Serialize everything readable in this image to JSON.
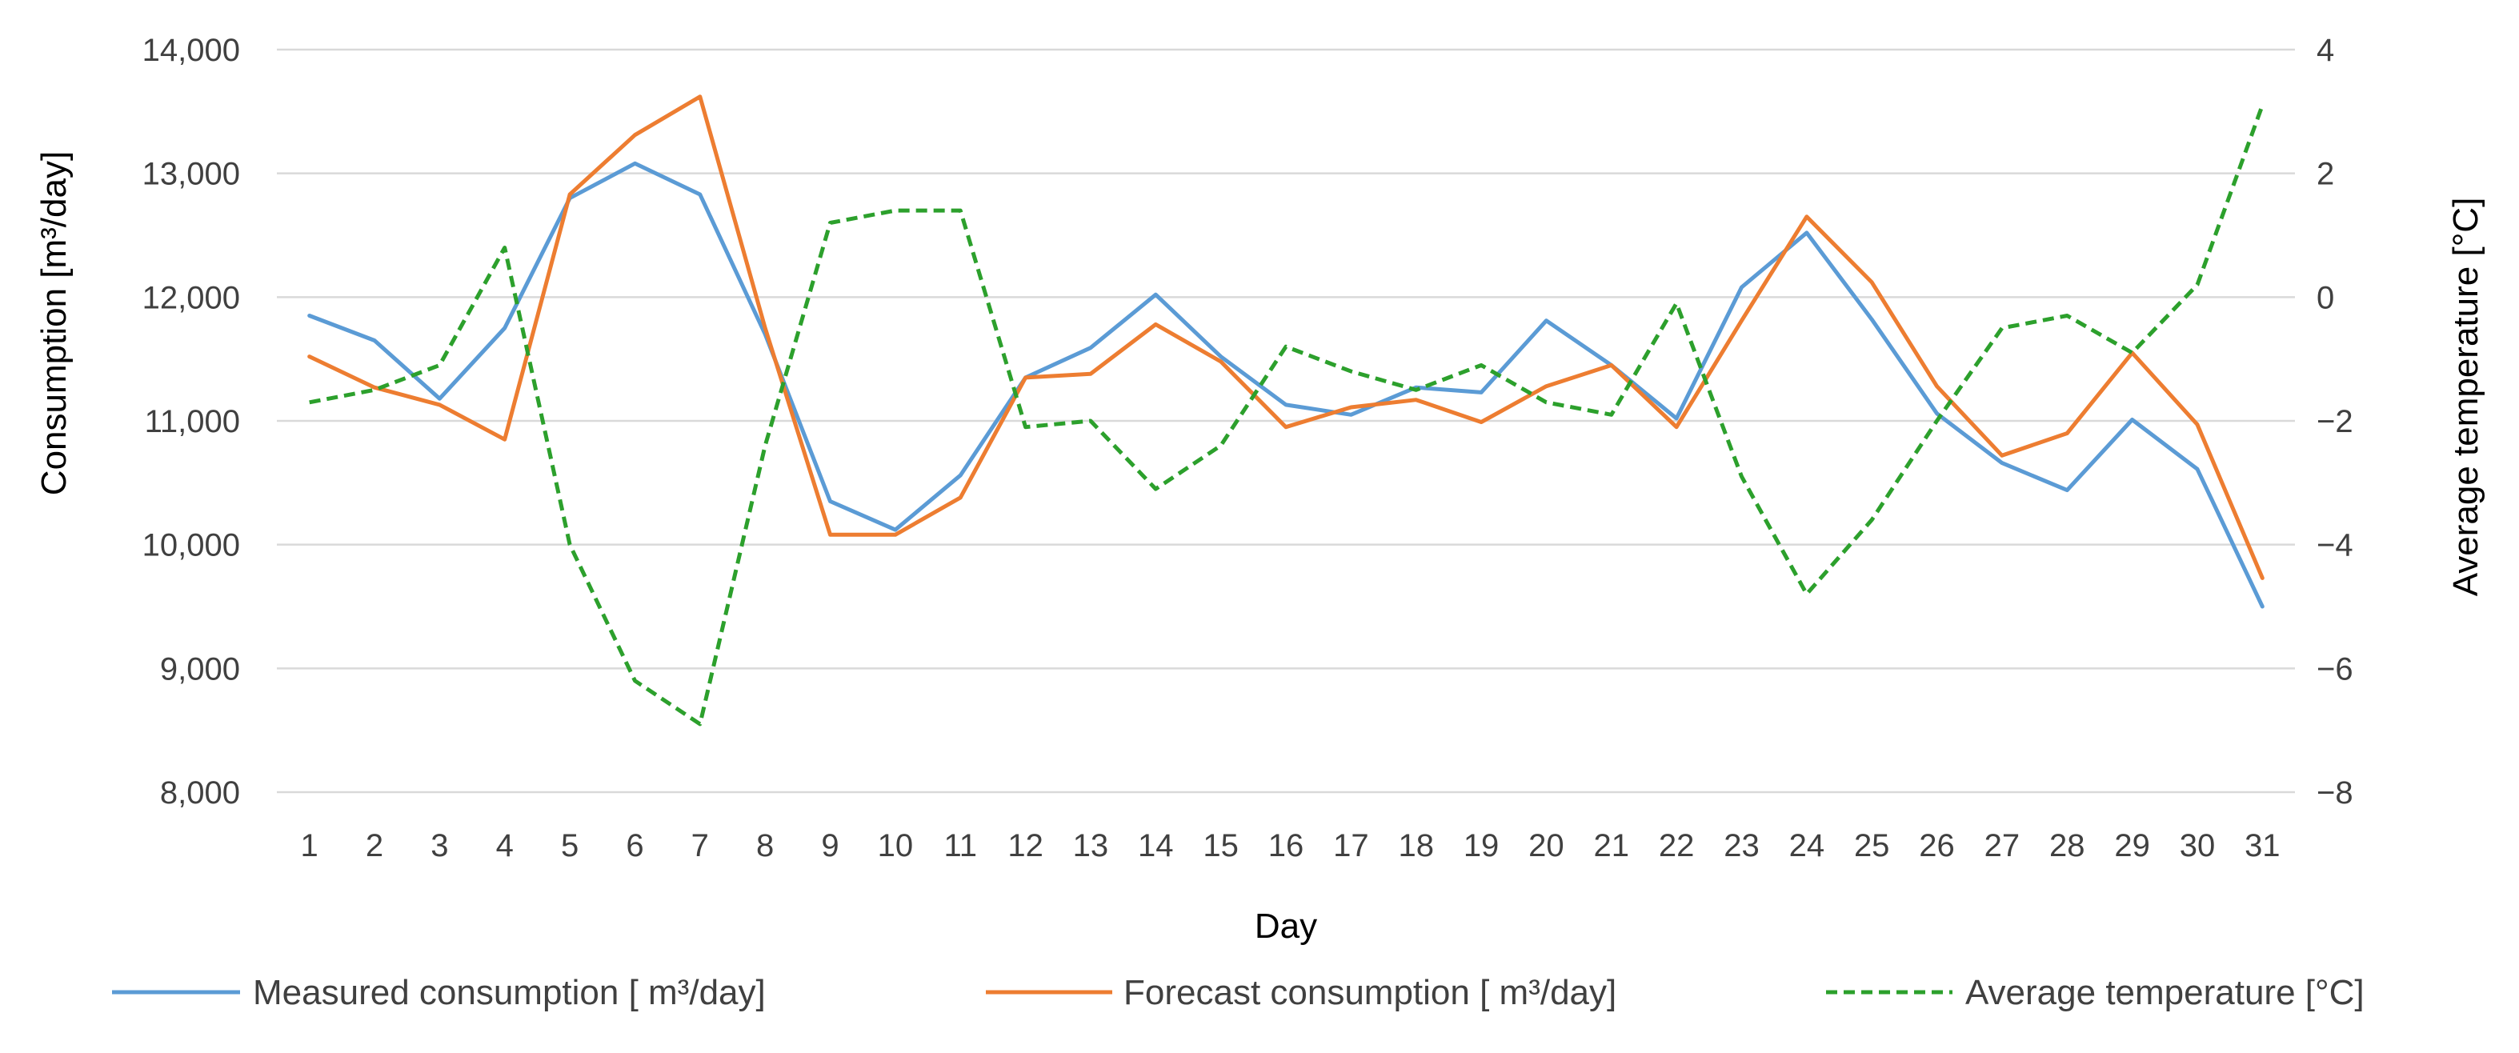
{
  "chart_data": {
    "type": "line",
    "xlabel": "Day",
    "ylabel_left": "Consumption [m³/day]",
    "ylabel_right": "Average temperature [°C]",
    "x": [
      1,
      2,
      3,
      4,
      5,
      6,
      7,
      8,
      9,
      10,
      11,
      12,
      13,
      14,
      15,
      16,
      17,
      18,
      19,
      20,
      21,
      22,
      23,
      24,
      25,
      26,
      27,
      28,
      29,
      30,
      31
    ],
    "y_left": {
      "min": 8000,
      "max": 14000,
      "step": 1000,
      "tick_labels": [
        "8,000",
        "9,000",
        "10,000",
        "11,000",
        "12,000",
        "13,000",
        "14,000"
      ]
    },
    "y_right": {
      "min": -8,
      "max": 4,
      "step": 2,
      "tick_labels": [
        "−8",
        "−6",
        "−4",
        "−2",
        "0",
        "2",
        "4"
      ]
    },
    "grid": true,
    "legend_position": "bottom",
    "series": [
      {
        "name": "Measured consumption [ m³/day]",
        "axis": "left",
        "color": "#5b9bd5",
        "dash": "solid",
        "values": [
          11850,
          11650,
          11180,
          11750,
          12800,
          13080,
          12830,
          11700,
          10350,
          10120,
          10560,
          11350,
          11590,
          12020,
          11520,
          11130,
          11050,
          11270,
          11230,
          11810,
          11450,
          11020,
          12080,
          12520,
          11820,
          11060,
          10660,
          10440,
          11010,
          10610,
          9500
        ]
      },
      {
        "name": "Forecast consumption [ m³/day]",
        "axis": "left",
        "color": "#ed7d31",
        "dash": "solid",
        "values": [
          11520,
          11270,
          11130,
          10850,
          12830,
          13310,
          13620,
          11750,
          10080,
          10080,
          10380,
          11350,
          11380,
          11780,
          11480,
          10950,
          11110,
          11170,
          10990,
          11280,
          11450,
          10950,
          11810,
          12650,
          12120,
          11280,
          10720,
          10900,
          11550,
          10970,
          9730
        ]
      },
      {
        "name": "Average temperature [°C]",
        "axis": "right",
        "color": "#2ca02c",
        "dash": "dashed",
        "values": [
          -1.7,
          -1.5,
          -1.1,
          0.8,
          -4.0,
          -6.2,
          -6.9,
          -2.4,
          1.2,
          1.4,
          1.4,
          -2.1,
          -2.0,
          -3.1,
          -2.4,
          -0.8,
          -1.2,
          -1.5,
          -1.1,
          -1.7,
          -1.9,
          -0.1,
          -2.9,
          -4.8,
          -3.6,
          -2.0,
          -0.5,
          -0.3,
          -0.9,
          0.2,
          3.1
        ]
      }
    ]
  }
}
